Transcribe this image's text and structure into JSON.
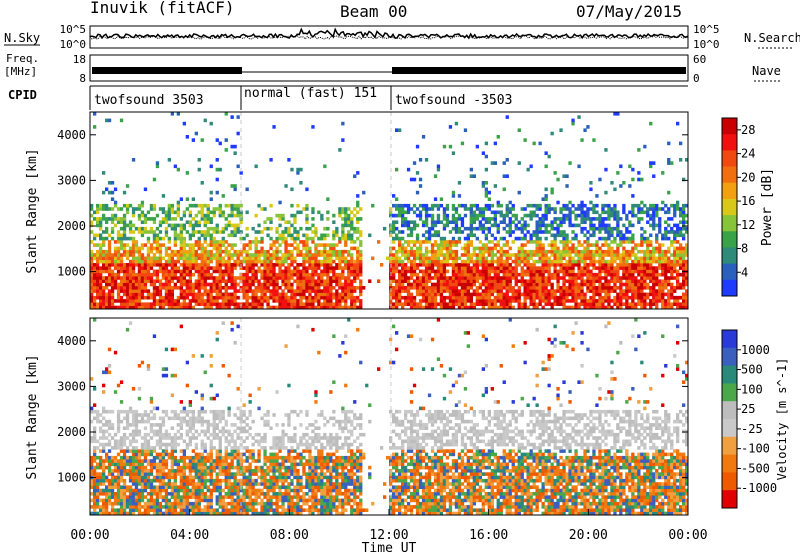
{
  "header": {
    "station": "Inuvik (fitACF)",
    "beam": "Beam 00",
    "date": "07/May/2015"
  },
  "side_labels": {
    "nsky": "N.Sky",
    "freq_line1": "Freq.",
    "freq_line2": "[MHz]",
    "cpid": "CPID",
    "nsearch": "N.Search",
    "nave": "Nave"
  },
  "colors": {
    "power_scale": [
      "#1f3bff",
      "#2a5fbd",
      "#2f8a7a",
      "#3aa34a",
      "#88c43a",
      "#d8c81a",
      "#f0a010",
      "#f07010",
      "#f04a10",
      "#f01010",
      "#c80000"
    ],
    "velocity_scale": [
      "#e00000",
      "#ee5a00",
      "#f07a10",
      "#f0a040",
      "#c9c9c9",
      "#bdbdbd",
      "#4aa84a",
      "#2a8a7a",
      "#3a5fbd",
      "#2a3ad8"
    ]
  },
  "chart_data": [
    {
      "type": "line",
      "panel": "noise",
      "yticks_left": [
        "10^5",
        "10^0"
      ],
      "yticks_right": [
        "10^5",
        "10^0"
      ]
    },
    {
      "type": "line",
      "panel": "frequency",
      "yticks_left": [
        "18",
        "8"
      ],
      "yticks_right": [
        "60",
        "0"
      ]
    },
    {
      "type": "table",
      "panel": "cpid",
      "segments": [
        {
          "label": "twofsound 3503",
          "start_hour": 0,
          "end_hour": 6
        },
        {
          "label": "normal (fast) 151",
          "start_hour": 6,
          "end_hour": 12
        },
        {
          "label": "twofsound -3503",
          "start_hour": 12,
          "end_hour": 24
        }
      ]
    },
    {
      "type": "heatmap",
      "panel": "power",
      "ylabel": "Slant Range [km]",
      "ylim": [
        180,
        4500
      ],
      "yticks": [
        1000,
        2000,
        3000,
        4000
      ],
      "xlim": [
        0,
        24
      ],
      "colorbar_label": "Power [dB]",
      "colorbar_ticks": [
        4,
        8,
        12,
        16,
        20,
        24,
        28
      ],
      "colorbar_range": [
        0,
        30
      ]
    },
    {
      "type": "heatmap",
      "panel": "velocity",
      "ylabel": "Slant Range [km]",
      "xlabel": "Time UT",
      "ylim": [
        180,
        4500
      ],
      "yticks": [
        1000,
        2000,
        3000,
        4000
      ],
      "xlim": [
        0,
        24
      ],
      "xticks": [
        "00:00",
        "04:00",
        "08:00",
        "12:00",
        "16:00",
        "20:00",
        "00:00"
      ],
      "colorbar_label": "Velocity [m s^-1]",
      "colorbar_ticks": [
        "1000",
        "500",
        "100",
        "25",
        "-25",
        "-100",
        "-500",
        "-1000"
      ]
    }
  ]
}
